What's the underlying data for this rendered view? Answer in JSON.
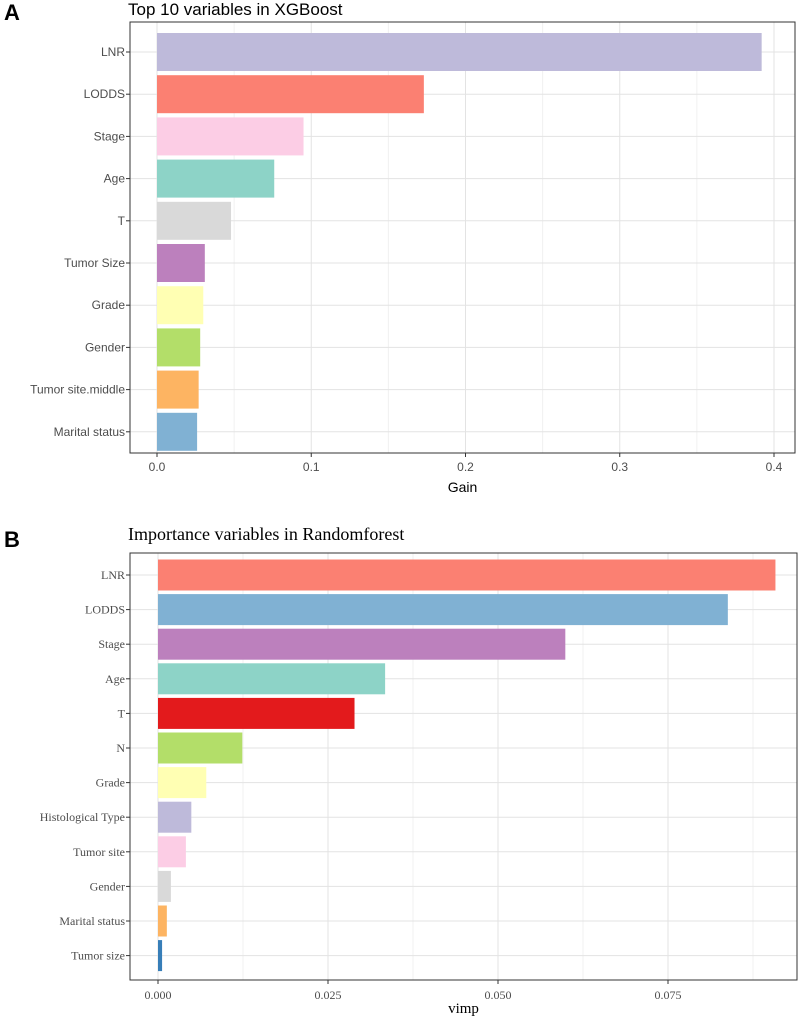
{
  "chart_data": [
    {
      "panel": "A",
      "type": "bar",
      "orientation": "horizontal",
      "title": "Top 10 variables in XGBoost",
      "xlabel": "Gain",
      "ylabel": "",
      "xlim": [
        0,
        0.4
      ],
      "xticks": [
        0.0,
        0.1,
        0.2,
        0.3,
        0.4
      ],
      "xtick_labels": [
        "0.0",
        "0.1",
        "0.2",
        "0.3",
        "0.4"
      ],
      "grid": true,
      "legend": "none",
      "categories": [
        "LNR",
        "LODDS",
        "Stage",
        "Age",
        "T",
        "Tumor Size",
        "Grade",
        "Gender",
        "Tumor site.middle",
        "Marital status"
      ],
      "values": [
        0.392,
        0.173,
        0.095,
        0.076,
        0.048,
        0.031,
        0.03,
        0.028,
        0.027,
        0.026
      ],
      "colors": [
        "#bebada",
        "#fb8072",
        "#fccde5",
        "#8dd3c7",
        "#d9d9d9",
        "#bc80bd",
        "#ffffb3",
        "#b3de69",
        "#fdb462",
        "#80b1d3"
      ]
    },
    {
      "panel": "B",
      "type": "bar",
      "orientation": "horizontal",
      "title": "Importance variables in Randomforest",
      "xlabel": "vimp",
      "ylabel": "",
      "xlim": [
        0,
        0.092
      ],
      "xticks": [
        0.0,
        0.025,
        0.05,
        0.075
      ],
      "xtick_labels": [
        "0.000",
        "0.025",
        "0.050",
        "0.075"
      ],
      "grid": true,
      "legend": "none",
      "categories": [
        "LNR",
        "LODDS",
        "Stage",
        "Age",
        "T",
        "N",
        "Grade",
        "Histological Type",
        "Tumor site",
        "Gender",
        "Marital  status",
        "Tumor size"
      ],
      "values": [
        0.0908,
        0.0838,
        0.0599,
        0.0334,
        0.0289,
        0.0124,
        0.0071,
        0.0049,
        0.0041,
        0.0019,
        0.0013,
        0.0006
      ],
      "colors": [
        "#fb8072",
        "#80b1d3",
        "#bc80bd",
        "#8dd3c7",
        "#e31a1c",
        "#b3de69",
        "#ffffb3",
        "#bebada",
        "#fccde5",
        "#d9d9d9",
        "#fdb462",
        "#377eb8"
      ]
    }
  ]
}
